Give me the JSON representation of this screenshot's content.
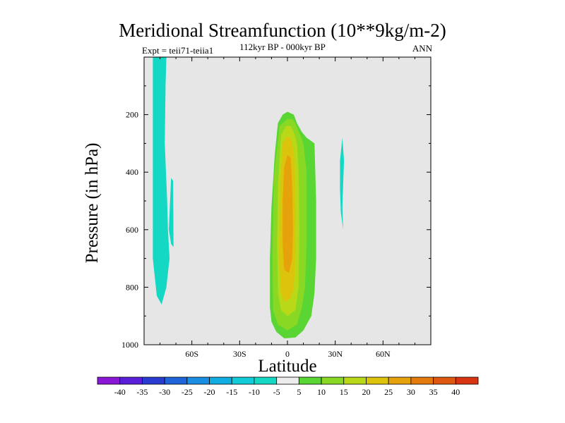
{
  "chart_data": {
    "type": "contour",
    "title": "Meridional Streamfunction (10**9kg/m-2)",
    "subtitle": "112kyr BP - 000kyr BP",
    "left_string": "Expt = teii71-teiia1",
    "right_string": "ANN",
    "xlabel": "Latitude",
    "ylabel": "Pressure (in hPa)",
    "xlim": [
      -90,
      90
    ],
    "ylim": [
      0,
      1000
    ],
    "y_reversed": true,
    "xticks": [
      {
        "value": -60,
        "label": "60S"
      },
      {
        "value": -30,
        "label": "30S"
      },
      {
        "value": 0,
        "label": "0"
      },
      {
        "value": 30,
        "label": "30N"
      },
      {
        "value": 60,
        "label": "60N"
      }
    ],
    "yticks": [
      {
        "value": 200,
        "label": "200"
      },
      {
        "value": 400,
        "label": "400"
      },
      {
        "value": 600,
        "label": "600"
      },
      {
        "value": 800,
        "label": "800"
      },
      {
        "value": 1000,
        "label": "1000"
      }
    ],
    "background_color": "#e6e6e6",
    "colorbar": {
      "labels": [
        "-40",
        "-35",
        "-30",
        "-25",
        "-20",
        "-15",
        "-10",
        "-5",
        "5",
        "10",
        "15",
        "20",
        "25",
        "30",
        "35",
        "40"
      ],
      "colors": [
        "#8a16d6",
        "#5a1ed8",
        "#2a3cd0",
        "#1f64d8",
        "#1a8ee0",
        "#10aee0",
        "#11ccd8",
        "#14d8c4",
        "#ececec",
        "#5ad634",
        "#88d824",
        "#b8d818",
        "#dcc40c",
        "#e6a20a",
        "#e27a0c",
        "#de5810",
        "#d83412"
      ]
    },
    "regions": [
      {
        "name": "negative-cell-high-latitude-south",
        "value": -7.5,
        "color": "#14d8c4",
        "polygon": [
          [
            -84.5,
            0
          ],
          [
            -76,
            0
          ],
          [
            -76.5,
            100
          ],
          [
            -77,
            300
          ],
          [
            -75.5,
            500
          ],
          [
            -75,
            600
          ],
          [
            -74,
            700
          ],
          [
            -75,
            750
          ],
          [
            -76,
            800
          ],
          [
            -79,
            860
          ],
          [
            -82,
            830
          ],
          [
            -84.5,
            700
          ]
        ]
      },
      {
        "name": "negative-cell-high-latitude-south-spur",
        "value": -7.5,
        "color": "#14d8c4",
        "polygon": [
          [
            -73,
            420
          ],
          [
            -71.8,
            430
          ],
          [
            -71.5,
            660
          ],
          [
            -73,
            650
          ],
          [
            -74.5,
            600
          ]
        ]
      },
      {
        "name": "negative-cell-subtropics-north",
        "value": -7.5,
        "color": "#14d8c4",
        "polygon": [
          [
            34.5,
            280
          ],
          [
            35.5,
            360
          ],
          [
            35,
            440
          ],
          [
            34.5,
            520
          ],
          [
            35,
            600
          ],
          [
            33.5,
            540
          ],
          [
            33,
            460
          ],
          [
            33,
            360
          ]
        ]
      },
      {
        "name": "positive-cell-5",
        "value": 7.5,
        "color": "#5ad634",
        "polygon": [
          [
            -8,
            340
          ],
          [
            -6,
            230
          ],
          [
            -3,
            200
          ],
          [
            0,
            190
          ],
          [
            4,
            200
          ],
          [
            6,
            230
          ],
          [
            9,
            260
          ],
          [
            12,
            280
          ],
          [
            17,
            300
          ],
          [
            18,
            500
          ],
          [
            18,
            700
          ],
          [
            17,
            820
          ],
          [
            15,
            900
          ],
          [
            10,
            950
          ],
          [
            5,
            975
          ],
          [
            -2,
            978
          ],
          [
            -7,
            955
          ],
          [
            -10,
            920
          ],
          [
            -11,
            870
          ],
          [
            -11,
            700
          ],
          [
            -10,
            520
          ]
        ]
      },
      {
        "name": "positive-cell-10",
        "value": 12.5,
        "color": "#88d824",
        "polygon": [
          [
            -5,
            240
          ],
          [
            0,
            215
          ],
          [
            3,
            215
          ],
          [
            5,
            230
          ],
          [
            8,
            270
          ],
          [
            10,
            300
          ],
          [
            12,
            400
          ],
          [
            12,
            650
          ],
          [
            11,
            800
          ],
          [
            9,
            870
          ],
          [
            6,
            930
          ],
          [
            0,
            950
          ],
          [
            -6,
            930
          ],
          [
            -9,
            880
          ],
          [
            -9.5,
            700
          ],
          [
            -8.5,
            420
          ]
        ]
      },
      {
        "name": "positive-cell-15",
        "value": 17.5,
        "color": "#b8d818",
        "polygon": [
          [
            -4,
            270
          ],
          [
            -1,
            240
          ],
          [
            2,
            240
          ],
          [
            4,
            260
          ],
          [
            6,
            300
          ],
          [
            7,
            400
          ],
          [
            7.5,
            600
          ],
          [
            7,
            800
          ],
          [
            5,
            880
          ],
          [
            0,
            900
          ],
          [
            -4,
            880
          ],
          [
            -6,
            820
          ],
          [
            -6.5,
            650
          ],
          [
            -6,
            450
          ]
        ]
      },
      {
        "name": "positive-cell-20",
        "value": 22.5,
        "color": "#dcc40c",
        "polygon": [
          [
            -3,
            300
          ],
          [
            0,
            275
          ],
          [
            2,
            280
          ],
          [
            4,
            330
          ],
          [
            5,
            450
          ],
          [
            5,
            700
          ],
          [
            4,
            800
          ],
          [
            2,
            840
          ],
          [
            -2,
            850
          ],
          [
            -4,
            820
          ],
          [
            -5,
            700
          ],
          [
            -4.5,
            450
          ]
        ]
      },
      {
        "name": "positive-cell-25",
        "value": 27.5,
        "color": "#e6a20a",
        "polygon": [
          [
            -2,
            380
          ],
          [
            0,
            340
          ],
          [
            2,
            350
          ],
          [
            3,
            450
          ],
          [
            3.5,
            600
          ],
          [
            3,
            700
          ],
          [
            1,
            750
          ],
          [
            -2,
            740
          ],
          [
            -3,
            650
          ],
          [
            -3,
            500
          ]
        ]
      }
    ]
  }
}
